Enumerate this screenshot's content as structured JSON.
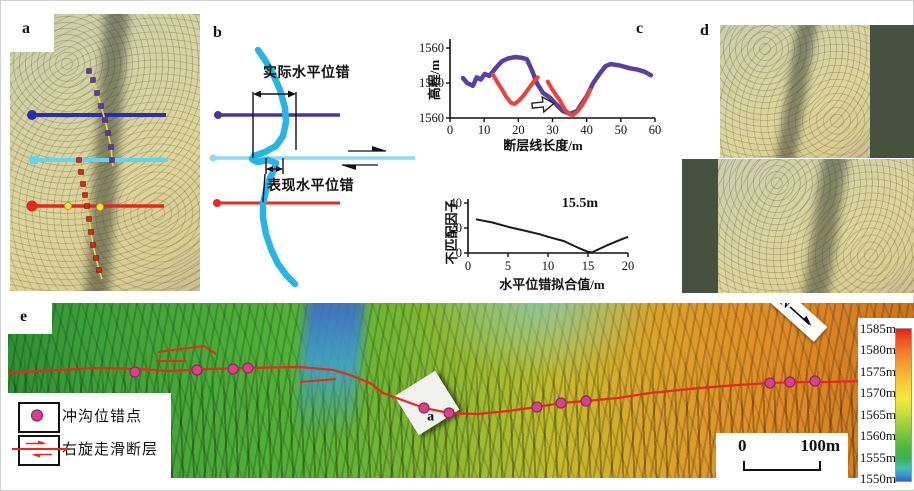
{
  "panel_a": {
    "label": "a"
  },
  "panel_b": {
    "label": "b",
    "actual_offset_label": "实际水平位错",
    "apparent_offset_label": "表现水平位错"
  },
  "panel_c": {
    "label": "c"
  },
  "panel_d": {
    "label": "d"
  },
  "panel_e": {
    "label": "e",
    "inset_label": "a",
    "north_label": "N",
    "scale_bar": {
      "start": "0",
      "end": "100m"
    },
    "legend": [
      {
        "symbol": "offset-point-dot",
        "label": "冲沟位错点"
      },
      {
        "symbol": "dextral-fault-arrows",
        "label": "右旋走滑断层"
      }
    ],
    "colorbar": {
      "labels": [
        "1585m",
        "1580m",
        "1575m",
        "1570m",
        "1565m",
        "1560m",
        "1555m",
        "1550m"
      ]
    }
  },
  "chart_data": [
    {
      "id": "elevation-profile-along-fault",
      "type": "line",
      "xlabel": "断层线长度/m",
      "ylabel": "高程/m",
      "xlim": [
        0,
        60
      ],
      "xticks": [
        0,
        10,
        20,
        30,
        40,
        50,
        60
      ],
      "ytick_labels": [
        "1560",
        "1560",
        "1560"
      ],
      "note": "series y values are fraction of axis height; printed y tick labels all read 1560",
      "series": [
        {
          "name": "profile-purple",
          "color": "#5b3fa0",
          "width": 4.5,
          "points": [
            [
              3.8,
              0.57
            ],
            [
              5,
              0.5
            ],
            [
              6.7,
              0.46
            ],
            [
              7.8,
              0.58
            ],
            [
              9,
              0.55
            ],
            [
              10.2,
              0.63
            ],
            [
              11.5,
              0.6
            ],
            [
              13.5,
              0.72
            ],
            [
              15.2,
              0.81
            ],
            [
              17,
              0.85
            ],
            [
              19,
              0.87
            ],
            [
              21,
              0.86
            ],
            [
              22.5,
              0.84
            ],
            [
              24,
              0.68
            ],
            [
              25.4,
              0.5
            ],
            [
              27.2,
              0.36
            ],
            [
              29.3,
              0.29
            ],
            [
              31,
              0.2
            ],
            [
              33,
              0.1
            ],
            [
              35.1,
              0.06
            ],
            [
              37.2,
              0.1
            ],
            [
              38.5,
              0.2
            ],
            [
              40,
              0.31
            ],
            [
              41.9,
              0.5
            ],
            [
              43.9,
              0.64
            ],
            [
              45.5,
              0.74
            ],
            [
              47,
              0.77
            ],
            [
              49.7,
              0.75
            ],
            [
              52.7,
              0.71
            ],
            [
              55,
              0.69
            ],
            [
              57,
              0.66
            ],
            [
              58.8,
              0.61
            ]
          ]
        },
        {
          "name": "offset-gully-red-1",
          "color": "#e8443a",
          "width": 4,
          "points": [
            [
              12.6,
              0.62
            ],
            [
              14,
              0.5
            ],
            [
              15.2,
              0.41
            ],
            [
              16.5,
              0.3
            ],
            [
              17.8,
              0.22
            ],
            [
              18.8,
              0.2
            ],
            [
              20,
              0.24
            ],
            [
              21.5,
              0.32
            ],
            [
              23,
              0.42
            ],
            [
              24.5,
              0.52
            ],
            [
              25.7,
              0.58
            ]
          ]
        },
        {
          "name": "offset-gully-red-2",
          "color": "#e8443a",
          "width": 4,
          "points": [
            [
              28.6,
              0.52
            ],
            [
              29.8,
              0.42
            ],
            [
              31,
              0.33
            ],
            [
              32.2,
              0.25
            ],
            [
              33.6,
              0.12
            ],
            [
              35,
              0.05
            ],
            [
              36,
              0.04
            ],
            [
              37.4,
              0.1
            ],
            [
              38.6,
              0.18
            ],
            [
              39.6,
              0.26
            ],
            [
              41,
              0.4
            ]
          ]
        }
      ]
    },
    {
      "id": "misfit-vs-offset",
      "type": "line",
      "xlabel": "水平位错拟合值/m",
      "ylabel": "不匹配因子",
      "xlim": [
        0,
        20
      ],
      "ylim": [
        0,
        40
      ],
      "xticks": [
        0,
        5,
        10,
        15,
        20
      ],
      "yticks": [
        0,
        20,
        40
      ],
      "best_fit_label": "15.5m",
      "series": [
        {
          "name": "misfit-curve",
          "color": "#1a1a1a",
          "width": 2,
          "points": [
            [
              1,
              27
            ],
            [
              3,
              24.5
            ],
            [
              5,
              21
            ],
            [
              7,
              18
            ],
            [
              9,
              15
            ],
            [
              10,
              13
            ],
            [
              12,
              9.5
            ],
            [
              14,
              3.5
            ],
            [
              15,
              1
            ],
            [
              15.5,
              0.5
            ],
            [
              16.5,
              3.5
            ],
            [
              17.5,
              6.5
            ],
            [
              19,
              10.5
            ],
            [
              20,
              13
            ]
          ]
        }
      ]
    }
  ],
  "colors": {
    "fault_line": "#e8281e",
    "offset_point": "#d8418c",
    "profile_purple": "#5b3fa0",
    "profile_red": "#e8443a",
    "gully_curve_cyan": "#29b4e8",
    "transect_blue": "#2a2fa8",
    "transect_lightblue": "#62d4f2",
    "transect_red": "#e2291e",
    "colorbar_top": "#e41f1a",
    "colorbar_bottom": "#3560c8",
    "reconstruction_background": "#465140"
  }
}
